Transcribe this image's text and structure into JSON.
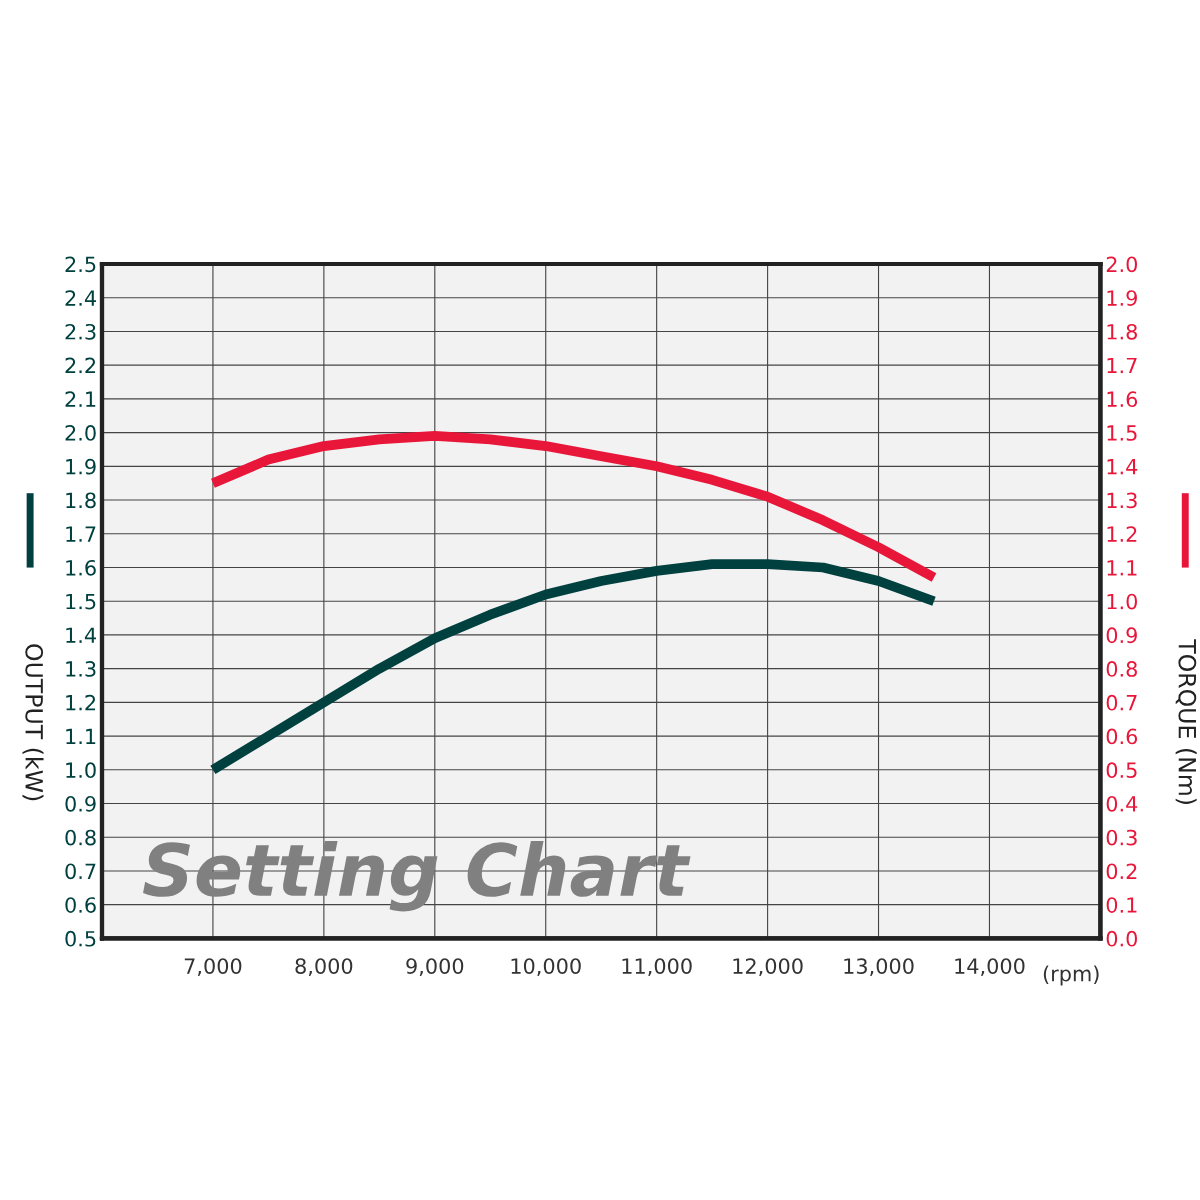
{
  "chart_data": {
    "type": "line",
    "xlabel": "(rpm)",
    "ylabel": "OUTPUT (kW)",
    "y2label": "TORQUE (Nm)",
    "x": [
      7000,
      7500,
      8000,
      8500,
      9000,
      9500,
      10000,
      10500,
      11000,
      11500,
      12000,
      12500,
      13000,
      13500
    ],
    "series": [
      {
        "color": "#00403f",
        "axis": "y",
        "values": [
          1.0,
          1.1,
          1.2,
          1.3,
          1.39,
          1.46,
          1.52,
          1.56,
          1.59,
          1.61,
          1.61,
          1.6,
          1.56,
          1.5
        ]
      },
      {
        "color": "#e8173a",
        "axis": "y2",
        "values": [
          1.35,
          1.42,
          1.46,
          1.48,
          1.49,
          1.48,
          1.46,
          1.43,
          1.4,
          1.36,
          1.31,
          1.24,
          1.16,
          1.07
        ]
      }
    ],
    "xlim": [
      6000,
      15000
    ],
    "xticks": [
      {
        "value": 7000,
        "label": "7,000"
      },
      {
        "value": 8000,
        "label": "8,000"
      },
      {
        "value": 9000,
        "label": "9,000"
      },
      {
        "value": 10000,
        "label": "10,000"
      },
      {
        "value": 11000,
        "label": "11,000"
      },
      {
        "value": 12000,
        "label": "12,000"
      },
      {
        "value": 13000,
        "label": "13,000"
      },
      {
        "value": 14000,
        "label": "14,000"
      }
    ],
    "ylim": [
      0.5,
      2.5
    ],
    "yticks": [
      {
        "value": 0.5,
        "label": "0.5"
      },
      {
        "value": 0.6,
        "label": "0.6"
      },
      {
        "value": 0.7,
        "label": "0.7"
      },
      {
        "value": 0.8,
        "label": "0.8"
      },
      {
        "value": 0.9,
        "label": "0.9"
      },
      {
        "value": 1.0,
        "label": "1.0"
      },
      {
        "value": 1.1,
        "label": "1.1"
      },
      {
        "value": 1.2,
        "label": "1.2"
      },
      {
        "value": 1.3,
        "label": "1.3"
      },
      {
        "value": 1.4,
        "label": "1.4"
      },
      {
        "value": 1.5,
        "label": "1.5"
      },
      {
        "value": 1.6,
        "label": "1.6"
      },
      {
        "value": 1.7,
        "label": "1.7"
      },
      {
        "value": 1.8,
        "label": "1.8"
      },
      {
        "value": 1.9,
        "label": "1.9"
      },
      {
        "value": 2.0,
        "label": "2.0"
      },
      {
        "value": 2.1,
        "label": "2.1"
      },
      {
        "value": 2.2,
        "label": "2.2"
      },
      {
        "value": 2.3,
        "label": "2.3"
      },
      {
        "value": 2.4,
        "label": "2.4"
      },
      {
        "value": 2.5,
        "label": "2.5"
      }
    ],
    "y2lim": [
      0.0,
      2.0
    ],
    "y2ticks": [
      {
        "value": 0.0,
        "label": "0.0"
      },
      {
        "value": 0.1,
        "label": "0.1"
      },
      {
        "value": 0.2,
        "label": "0.2"
      },
      {
        "value": 0.3,
        "label": "0.3"
      },
      {
        "value": 0.4,
        "label": "0.4"
      },
      {
        "value": 0.5,
        "label": "0.5"
      },
      {
        "value": 0.6,
        "label": "0.6"
      },
      {
        "value": 0.7,
        "label": "0.7"
      },
      {
        "value": 0.8,
        "label": "0.8"
      },
      {
        "value": 0.9,
        "label": "0.9"
      },
      {
        "value": 1.0,
        "label": "1.0"
      },
      {
        "value": 1.1,
        "label": "1.1"
      },
      {
        "value": 1.2,
        "label": "1.2"
      },
      {
        "value": 1.3,
        "label": "1.3"
      },
      {
        "value": 1.4,
        "label": "1.4"
      },
      {
        "value": 1.5,
        "label": "1.5"
      },
      {
        "value": 1.6,
        "label": "1.6"
      },
      {
        "value": 1.7,
        "label": "1.7"
      },
      {
        "value": 1.8,
        "label": "1.8"
      },
      {
        "value": 1.9,
        "label": "1.9"
      },
      {
        "value": 2.0,
        "label": "2.0"
      }
    ],
    "grid": true,
    "legend": false,
    "marker": "none",
    "line_style": "solid",
    "annotations": [
      "Setting Chart"
    ]
  }
}
